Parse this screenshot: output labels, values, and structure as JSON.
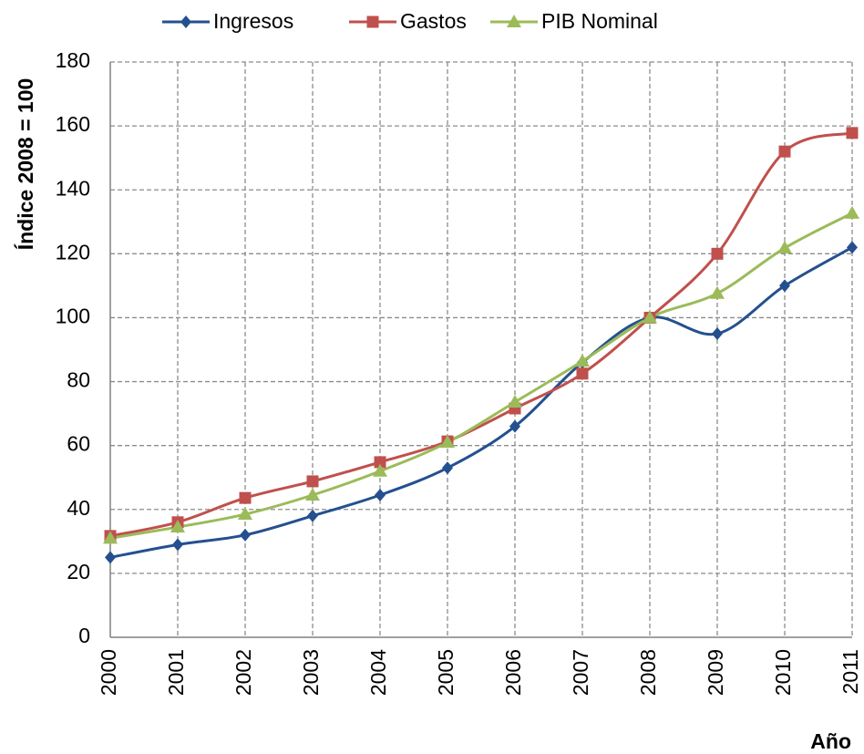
{
  "chart_data": {
    "type": "line",
    "y_label": "Índice 2008 = 100",
    "x_label": "Año",
    "categories": [
      "2000",
      "2001",
      "2002",
      "2003",
      "2004",
      "2005",
      "2006",
      "2007",
      "2008",
      "2009",
      "2010",
      "2011"
    ],
    "series": [
      {
        "name": "Ingresos",
        "color": "#24508f",
        "marker": "diamond",
        "values": [
          25,
          29,
          32,
          38,
          44.5,
          53,
          66,
          86,
          100,
          95,
          110,
          122
        ]
      },
      {
        "name": "Gastos",
        "color": "#c0504d",
        "marker": "square",
        "values": [
          31.7,
          36,
          43.6,
          48.8,
          54.8,
          61.3,
          71.6,
          82.5,
          100,
          120,
          152,
          157.8
        ]
      },
      {
        "name": "PIB Nominal",
        "color": "#9bbb59",
        "marker": "triangle",
        "values": [
          31,
          34.5,
          38.5,
          44.5,
          52,
          61,
          73.6,
          86.4,
          100,
          107.6,
          121.8,
          132.7
        ]
      }
    ],
    "ylim": [
      0,
      180
    ],
    "yticks": [
      0,
      20,
      40,
      60,
      80,
      100,
      120,
      140,
      160,
      180
    ],
    "grid": true,
    "smooth": true,
    "legend": "top"
  }
}
